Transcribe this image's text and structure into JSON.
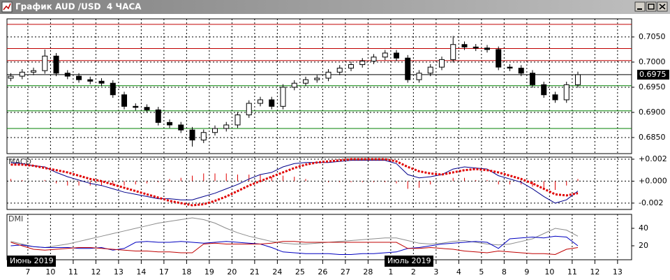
{
  "window": {
    "title": "График AUD /USD  4 ЧАСА"
  },
  "chart_data": [
    {
      "type": "candlestick",
      "xlim": [
        -0.92,
        26.62
      ],
      "x": [
        -0.75,
        -0.25,
        0.25,
        0.75,
        1.25,
        1.75,
        2.25,
        2.75,
        3.25,
        3.75,
        4.25,
        4.75,
        5.25,
        5.75,
        6.25,
        6.75,
        7.25,
        7.75,
        8.25,
        8.75,
        9.25,
        9.75,
        10.25,
        10.75,
        11.25,
        11.75,
        12.25,
        12.75,
        13.25,
        13.75,
        14.25,
        14.75,
        15.25,
        15.75,
        16.25,
        16.75,
        17.25,
        17.75,
        18.25,
        18.75,
        19.25,
        19.75,
        20.25,
        20.75,
        21.25,
        21.75,
        22.25,
        22.75,
        23.25,
        23.75,
        24.25
      ],
      "open": [
        0.6968,
        0.6972,
        0.698,
        0.6983,
        0.7012,
        0.6978,
        0.6972,
        0.6965,
        0.6962,
        0.6958,
        0.6935,
        0.6912,
        0.691,
        0.6905,
        0.688,
        0.6875,
        0.6865,
        0.6845,
        0.686,
        0.6868,
        0.6875,
        0.6895,
        0.6918,
        0.6925,
        0.6912,
        0.695,
        0.6958,
        0.6965,
        0.6968,
        0.698,
        0.6988,
        0.6995,
        0.7002,
        0.701,
        0.7018,
        0.7008,
        0.6965,
        0.6978,
        0.699,
        0.7005,
        0.7035,
        0.703,
        0.7028,
        0.7025,
        0.699,
        0.6988,
        0.6978,
        0.6955,
        0.6935,
        0.6925,
        0.6955
      ],
      "high": [
        0.6978,
        0.6986,
        0.6989,
        0.7025,
        0.7018,
        0.6984,
        0.6978,
        0.6971,
        0.6968,
        0.6964,
        0.6941,
        0.6918,
        0.6916,
        0.6911,
        0.6886,
        0.6881,
        0.6871,
        0.6866,
        0.6874,
        0.6881,
        0.6901,
        0.6924,
        0.6931,
        0.6931,
        0.6956,
        0.6964,
        0.6971,
        0.6974,
        0.6986,
        0.6994,
        0.7001,
        0.7008,
        0.7016,
        0.7024,
        0.7024,
        0.7014,
        0.6984,
        0.6996,
        0.7011,
        0.7052,
        0.7041,
        0.7036,
        0.7034,
        0.7031,
        0.6996,
        0.6994,
        0.6984,
        0.6961,
        0.6941,
        0.6961,
        0.6981
      ],
      "low": [
        0.6962,
        0.6966,
        0.6974,
        0.6977,
        0.6972,
        0.6966,
        0.6959,
        0.6956,
        0.6952,
        0.6929,
        0.6906,
        0.6904,
        0.6899,
        0.6874,
        0.6869,
        0.6859,
        0.6832,
        0.6839,
        0.6854,
        0.6862,
        0.6869,
        0.6889,
        0.6912,
        0.6906,
        0.6906,
        0.6944,
        0.6952,
        0.6959,
        0.6962,
        0.6974,
        0.6982,
        0.6989,
        0.6996,
        0.7004,
        0.7002,
        0.6959,
        0.6959,
        0.6972,
        0.6984,
        0.6999,
        0.7024,
        0.7022,
        0.7019,
        0.6984,
        0.6982,
        0.6972,
        0.6949,
        0.6929,
        0.6919,
        0.6919,
        0.6949
      ],
      "close": [
        0.6972,
        0.698,
        0.6983,
        0.7012,
        0.6978,
        0.6972,
        0.6965,
        0.6962,
        0.6958,
        0.6935,
        0.6912,
        0.691,
        0.6905,
        0.688,
        0.6875,
        0.6865,
        0.6845,
        0.686,
        0.6868,
        0.6875,
        0.6895,
        0.6918,
        0.6925,
        0.6912,
        0.695,
        0.6958,
        0.6965,
        0.6968,
        0.698,
        0.6988,
        0.6995,
        0.7002,
        0.701,
        0.7018,
        0.7008,
        0.6965,
        0.6978,
        0.699,
        0.7005,
        0.7035,
        0.703,
        0.7028,
        0.7025,
        0.699,
        0.6988,
        0.6978,
        0.6955,
        0.6935,
        0.6925,
        0.6955,
        0.6975
      ],
      "ylim": [
        0.6818,
        0.7086
      ],
      "yticks": [
        {
          "value": 0.705,
          "label": "0.7050"
        },
        {
          "value": 0.7,
          "label": "0.7000"
        },
        {
          "value": 0.695,
          "label": "0.6950"
        },
        {
          "value": 0.69,
          "label": "0.6900"
        },
        {
          "value": 0.685,
          "label": "0.6850"
        }
      ],
      "grid": true,
      "levels": [
        {
          "value": 0.7075,
          "color": "#c00000"
        },
        {
          "value": 0.7027,
          "color": "#c00000"
        },
        {
          "value": 0.7003,
          "color": "#c00000"
        },
        {
          "value": 0.6953,
          "color": "#008000"
        },
        {
          "value": 0.6903,
          "color": "#008000"
        },
        {
          "value": 0.6868,
          "color": "#008000"
        }
      ],
      "last_price": {
        "value": 0.6975,
        "label": "0.6975"
      }
    },
    {
      "type": "macd",
      "title": "MACD",
      "xlim": [
        -0.92,
        26.62
      ],
      "x": [
        -0.75,
        -0.25,
        0.25,
        0.75,
        1.25,
        1.75,
        2.25,
        2.75,
        3.25,
        3.75,
        4.25,
        4.75,
        5.25,
        5.75,
        6.25,
        6.75,
        7.25,
        7.75,
        8.25,
        8.75,
        9.25,
        9.75,
        10.25,
        10.75,
        11.25,
        11.75,
        12.25,
        12.75,
        13.25,
        13.75,
        14.25,
        14.75,
        15.25,
        15.75,
        16.25,
        16.75,
        17.25,
        17.75,
        18.25,
        18.75,
        19.25,
        19.75,
        20.25,
        20.75,
        21.25,
        21.75,
        22.25,
        22.75,
        23.25,
        23.75,
        24.25
      ],
      "ylim": [
        -0.00258,
        0.00219
      ],
      "yticks": [
        {
          "value": 0.002,
          "label": "+0.002"
        },
        {
          "value": 0,
          "label": "+0.000"
        },
        {
          "value": -0.002,
          "label": "-0.002"
        }
      ],
      "grid": true,
      "histogram": {
        "color": "#e00000",
        "values": [
          0.0002,
          0.0001,
          0.0,
          0.0001,
          -0.0002,
          -0.0004,
          -0.0004,
          -0.0004,
          -0.0004,
          -0.0004,
          -0.0004,
          -0.0003,
          -0.0002,
          -0.0001,
          0.0002,
          0.0003,
          0.0005,
          0.0007,
          0.0007,
          0.0007,
          0.0006,
          0.0006,
          0.0006,
          0.0004,
          0.0005,
          0.0004,
          0.0002,
          0.0,
          -0.0001,
          -0.0001,
          -0.0001,
          -0.0001,
          -0.0001,
          -0.0001,
          -0.0002,
          -0.0007,
          -0.0006,
          -0.0003,
          0.0,
          0.0003,
          0.0003,
          0.0001,
          0.0001,
          -0.0003,
          -0.0003,
          -0.0003,
          -0.0005,
          -0.0007,
          -0.0008,
          -0.0004,
          0.0002
        ]
      },
      "series": [
        {
          "color": "#00008b",
          "style": "solid",
          "values": [
            0.0017,
            0.0016,
            0.0014,
            0.0013,
            0.0008,
            0.0004,
            0.0001,
            -0.0002,
            -0.0004,
            -0.0007,
            -0.001,
            -0.0012,
            -0.0014,
            -0.0016,
            -0.0016,
            -0.0017,
            -0.0017,
            -0.0014,
            -0.0011,
            -0.0007,
            -0.0003,
            0.0002,
            0.0006,
            0.0008,
            0.0013,
            0.0016,
            0.0017,
            0.0017,
            0.0017,
            0.0018,
            0.0019,
            0.0019,
            0.0019,
            0.0019,
            0.0016,
            0.0006,
            0.0003,
            0.0004,
            0.0006,
            0.0011,
            0.0013,
            0.0012,
            0.0011,
            0.0005,
            0.0002,
            -0.0001,
            -0.0007,
            -0.0014,
            -0.002,
            -0.0017,
            -0.0009
          ]
        },
        {
          "color": "#e00000",
          "style": "dotted",
          "values": [
            0.0015,
            0.0015,
            0.0014,
            0.0012,
            0.001,
            0.0008,
            0.0005,
            0.0002,
            0.0,
            -0.0003,
            -0.0006,
            -0.0009,
            -0.0012,
            -0.0015,
            -0.0018,
            -0.002,
            -0.0022,
            -0.0021,
            -0.0018,
            -0.0014,
            -0.0009,
            -0.0004,
            0.0,
            0.0004,
            0.0008,
            0.0012,
            0.0015,
            0.0017,
            0.0018,
            0.0019,
            0.002,
            0.002,
            0.002,
            0.002,
            0.0018,
            0.0013,
            0.0009,
            0.0007,
            0.0006,
            0.0008,
            0.001,
            0.0011,
            0.001,
            0.0008,
            0.0005,
            0.0002,
            -0.0002,
            -0.0007,
            -0.0012,
            -0.0013,
            -0.0011
          ]
        }
      ]
    },
    {
      "type": "line",
      "title": "DMI",
      "xlim": [
        -0.92,
        26.62
      ],
      "x": [
        -0.75,
        -0.25,
        0.25,
        0.75,
        1.25,
        1.75,
        2.25,
        2.75,
        3.25,
        3.75,
        4.25,
        4.75,
        5.25,
        5.75,
        6.25,
        6.75,
        7.25,
        7.75,
        8.25,
        8.75,
        9.25,
        9.75,
        10.25,
        10.75,
        11.25,
        11.75,
        12.25,
        12.75,
        13.25,
        13.75,
        14.25,
        14.75,
        15.25,
        15.75,
        16.25,
        16.75,
        17.25,
        17.75,
        18.25,
        18.75,
        19.25,
        19.75,
        20.25,
        20.75,
        21.25,
        21.75,
        22.25,
        22.75,
        23.25,
        23.75,
        24.25
      ],
      "ylim": [
        4,
        56
      ],
      "yticks": [
        40,
        20
      ],
      "grid": false,
      "xticks": [
        {
          "value": 0,
          "label": "7"
        },
        {
          "value": 1,
          "label": "10"
        },
        {
          "value": 2,
          "label": "11"
        },
        {
          "value": 3,
          "label": "12"
        },
        {
          "value": 4,
          "label": "13"
        },
        {
          "value": 5,
          "label": "14"
        },
        {
          "value": 6,
          "label": "17"
        },
        {
          "value": 7,
          "label": "18"
        },
        {
          "value": 8,
          "label": "19"
        },
        {
          "value": 9,
          "label": "20"
        },
        {
          "value": 10,
          "label": "21"
        },
        {
          "value": 11,
          "label": "24"
        },
        {
          "value": 12,
          "label": "25"
        },
        {
          "value": 13,
          "label": "26"
        },
        {
          "value": 14,
          "label": "27"
        },
        {
          "value": 15,
          "label": "28"
        },
        {
          "value": 16,
          "label": "1"
        },
        {
          "value": 17,
          "label": "2"
        },
        {
          "value": 18,
          "label": "3"
        },
        {
          "value": 19,
          "label": "4"
        },
        {
          "value": 20,
          "label": "5"
        },
        {
          "value": 21,
          "label": "8"
        },
        {
          "value": 22,
          "label": "9"
        },
        {
          "value": 23,
          "label": "10"
        },
        {
          "value": 24,
          "label": "11"
        },
        {
          "value": 25,
          "label": "12"
        },
        {
          "value": 26,
          "label": "13"
        }
      ],
      "annotations": [
        "Июнь 2019",
        "Июль 2019"
      ],
      "series": [
        {
          "color": "#8c8c8c",
          "values": [
            25,
            22,
            19,
            18,
            20,
            22,
            25,
            28,
            31,
            34,
            37,
            40,
            43,
            46,
            48,
            50,
            52,
            50,
            46,
            40,
            35,
            31,
            28,
            25,
            23,
            22,
            22,
            23,
            24,
            25,
            26,
            27,
            28,
            29,
            29,
            26,
            23,
            22,
            23,
            25,
            26,
            24,
            22,
            21,
            22,
            25,
            28,
            34,
            40,
            38,
            31
          ]
        },
        {
          "color": "#0000c0",
          "values": [
            20,
            21,
            19,
            18,
            18,
            18,
            17,
            17,
            18,
            15,
            17,
            24,
            25,
            24,
            24,
            25,
            24,
            23,
            24,
            25,
            24,
            23,
            22,
            18,
            13,
            12,
            11,
            11,
            11,
            10,
            10,
            11,
            11,
            12,
            13,
            17,
            18,
            20,
            22,
            23,
            24,
            25,
            24,
            17,
            28,
            29,
            30,
            29,
            31,
            30,
            20
          ]
        },
        {
          "color": "#c00000",
          "values": [
            24,
            20,
            16,
            15,
            16,
            17,
            18,
            18,
            17,
            16,
            15,
            14,
            14,
            13,
            13,
            12,
            12,
            22,
            23,
            22,
            22,
            22,
            22,
            23,
            25,
            25,
            24,
            24,
            24,
            24,
            24,
            24,
            24,
            24,
            24,
            17,
            17,
            18,
            17,
            16,
            14,
            13,
            12,
            14,
            13,
            12,
            11,
            11,
            10,
            16,
            18
          ]
        }
      ]
    }
  ]
}
